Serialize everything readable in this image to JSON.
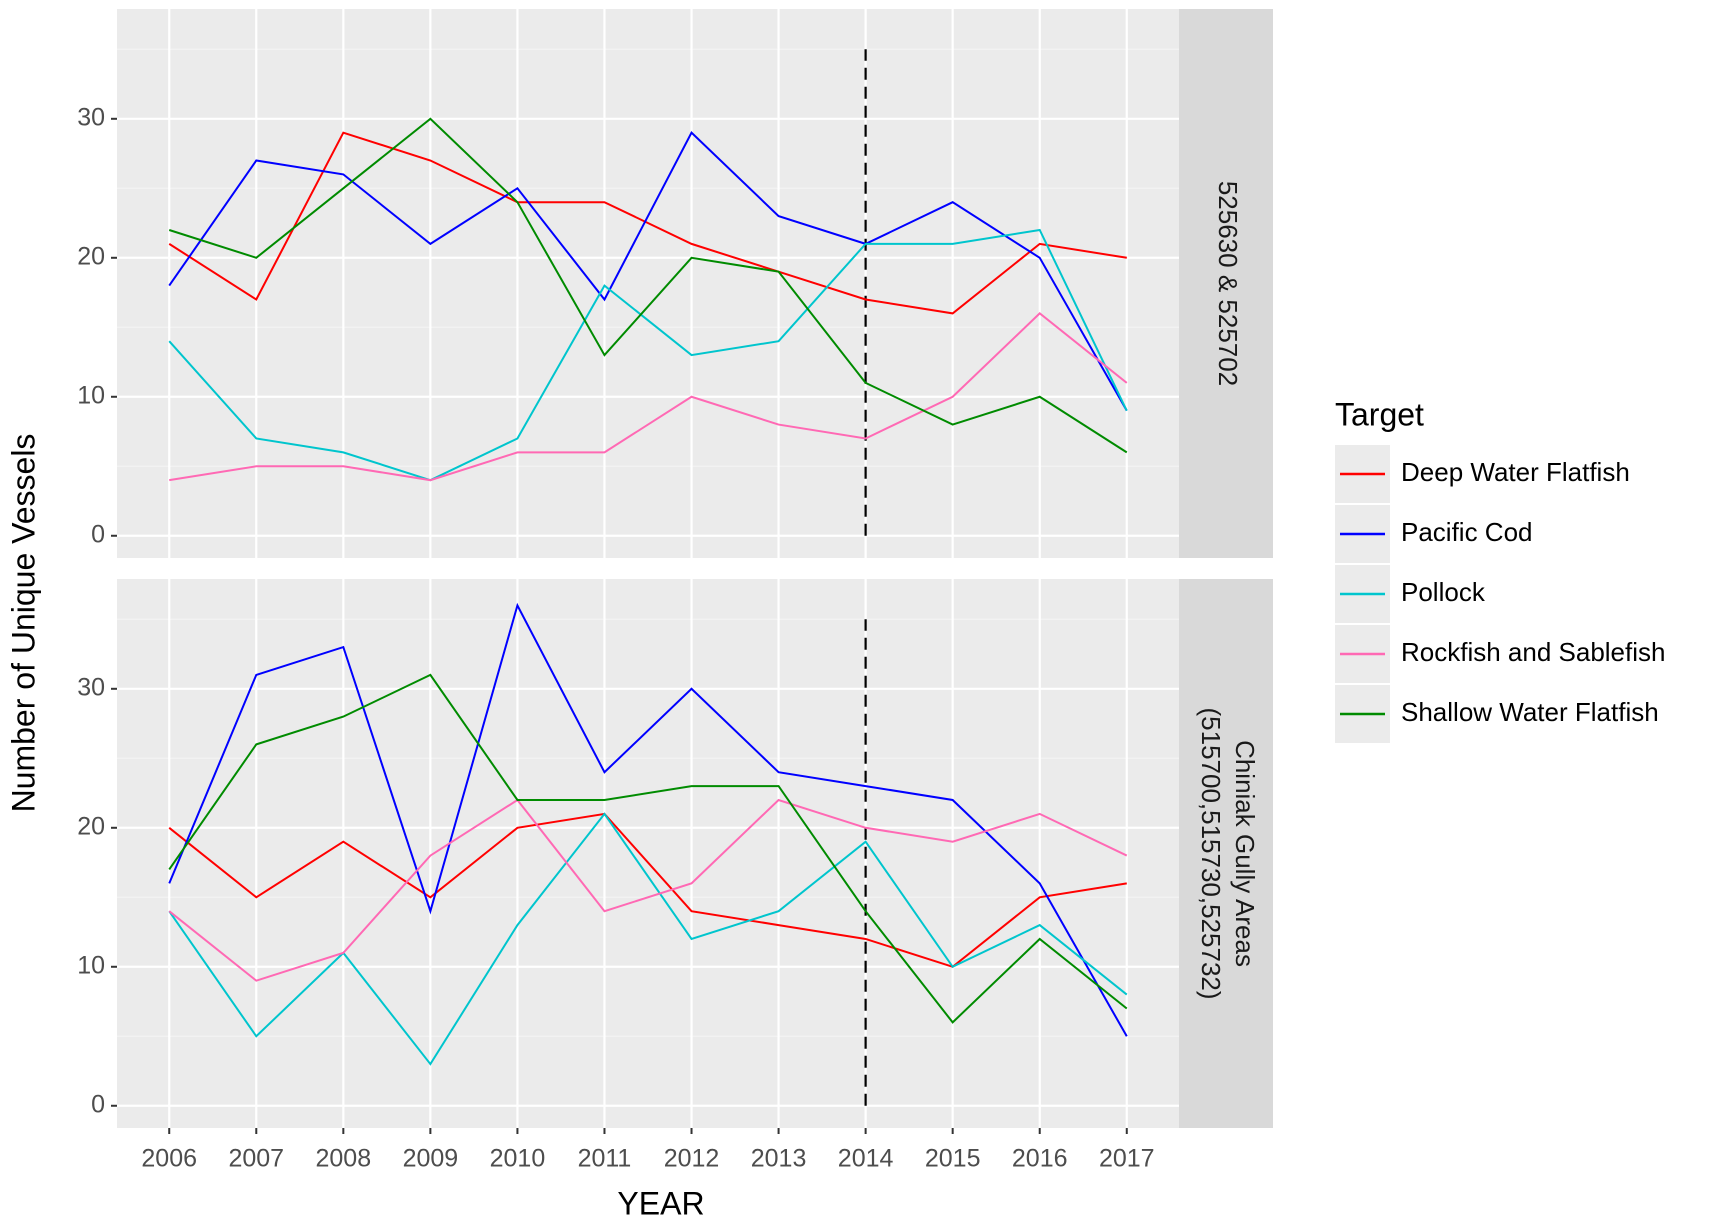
{
  "chart_data": {
    "type": "line",
    "x_label": "YEAR",
    "y_label": "Number of Unique Vessels",
    "legend_title": "Target",
    "x": [
      2006,
      2007,
      2008,
      2009,
      2010,
      2011,
      2012,
      2013,
      2014,
      2015,
      2016,
      2017
    ],
    "xlim": [
      2005.4,
      2017.6
    ],
    "xticks": [
      2006,
      2007,
      2008,
      2009,
      2010,
      2011,
      2012,
      2013,
      2014,
      2015,
      2016,
      2017
    ],
    "ylim": [
      -1.6,
      37.9
    ],
    "yticks": [
      0,
      10,
      20,
      30
    ],
    "y_minor_grid": [
      5,
      15,
      25,
      35
    ],
    "grid": true,
    "reference_line": {
      "x": 2014,
      "y": [
        0,
        35
      ]
    },
    "facets": [
      {
        "strip": [
          "525630 & 525702"
        ],
        "series": [
          {
            "name": "Deep Water Flatfish",
            "color": "#ff0000",
            "values": [
              21,
              17,
              29,
              27,
              24,
              24,
              21,
              19,
              17,
              16,
              21,
              20
            ]
          },
          {
            "name": "Pacific Cod",
            "color": "#0000ff",
            "values": [
              18,
              27,
              26,
              21,
              25,
              17,
              29,
              23,
              21,
              24,
              20,
              9
            ]
          },
          {
            "name": "Pollock",
            "color": "#00c5cd",
            "values": [
              14,
              7,
              6,
              4,
              7,
              18,
              13,
              14,
              21,
              21,
              22,
              9
            ]
          },
          {
            "name": "Rockfish and Sablefish",
            "color": "#ff69b4",
            "values": [
              4,
              5,
              5,
              4,
              6,
              6,
              10,
              8,
              7,
              10,
              16,
              11
            ]
          },
          {
            "name": "Shallow Water Flatfish",
            "color": "#008b00",
            "values": [
              22,
              20,
              25,
              30,
              24,
              13,
              20,
              19,
              11,
              8,
              10,
              6
            ]
          }
        ]
      },
      {
        "strip": [
          "Chiniak Gully Areas",
          "(515700,515730,525732)"
        ],
        "series": [
          {
            "name": "Deep Water Flatfish",
            "color": "#ff0000",
            "values": [
              20,
              15,
              19,
              15,
              20,
              21,
              14,
              13,
              12,
              10,
              15,
              16
            ]
          },
          {
            "name": "Pacific Cod",
            "color": "#0000ff",
            "values": [
              16,
              31,
              33,
              14,
              36,
              24,
              30,
              24,
              23,
              22,
              16,
              5
            ]
          },
          {
            "name": "Pollock",
            "color": "#00c5cd",
            "values": [
              14,
              5,
              11,
              3,
              13,
              21,
              12,
              14,
              19,
              10,
              13,
              8
            ]
          },
          {
            "name": "Rockfish and Sablefish",
            "color": "#ff69b4",
            "values": [
              14,
              9,
              11,
              18,
              22,
              14,
              16,
              22,
              20,
              19,
              21,
              18
            ]
          },
          {
            "name": "Shallow Water Flatfish",
            "color": "#008b00",
            "values": [
              17,
              26,
              28,
              31,
              22,
              22,
              23,
              23,
              14,
              6,
              12,
              7
            ]
          }
        ]
      }
    ]
  }
}
